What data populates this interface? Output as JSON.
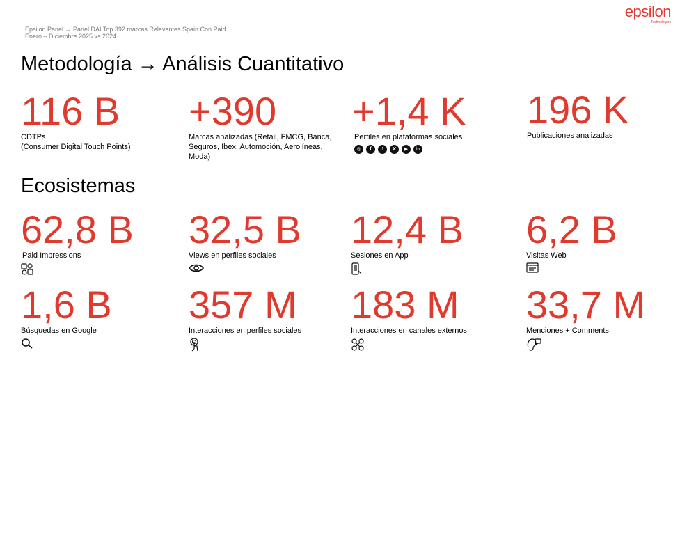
{
  "brand": {
    "logo_text": "epsilon",
    "logo_sub": "Technologies",
    "accent_color": "#e03a2f"
  },
  "header": {
    "kicker_line1": "Epsilon Panel → Panel DAI Top 392 marcas Relevantes Spain Con Paid",
    "kicker_line2": "Enero – Diciembre 2025 vs 2024"
  },
  "sections": {
    "metodologia_title": "Metodología → Análisis Cuantitativo",
    "ecosistemas_title": "Ecosistemas"
  },
  "metodologia": [
    {
      "value": "116 B",
      "label": "CDTPs",
      "label2": "(Consumer Digital Touch Points)"
    },
    {
      "value": "+390",
      "label": "Marcas analizadas (Retail, FMCG, Banca, Seguros, Ibex, Automoción, Aerolíneas, Moda)"
    },
    {
      "value": "+1,4 K",
      "label": "Perfiles en plataformas sociales",
      "icons": [
        "instagram-icon",
        "facebook-icon",
        "tiktok-icon",
        "x-icon",
        "youtube-icon",
        "linkedin-icon"
      ]
    },
    {
      "value": "196 K",
      "label": "Publicaciones analizadas"
    }
  ],
  "social_glyphs": [
    "◎",
    "f",
    "♪",
    "X",
    "▶",
    "in"
  ],
  "ecosistemas": [
    {
      "value": "62,8 B",
      "label": "Paid Impressions",
      "icon": "paid-impressions-icon"
    },
    {
      "value": "32,5 B",
      "label": "Views en perfiles sociales",
      "icon": "eye-icon"
    },
    {
      "value": "12,4 B",
      "label": "Sesiones en App",
      "icon": "mobile-app-icon"
    },
    {
      "value": "6,2 B",
      "label": "Visitas Web",
      "icon": "web-browser-icon"
    },
    {
      "value": "1,6 B",
      "label": "Búsquedas en Google",
      "icon": "search-icon"
    },
    {
      "value": "357 M",
      "label": "Interacciones en perfiles sociales",
      "icon": "touch-icon"
    },
    {
      "value": "183 M",
      "label": "Interacciones en canales externos",
      "icon": "external-channels-icon"
    },
    {
      "value": "33,7 M",
      "label": "Menciones + Comments",
      "icon": "mentions-icon"
    }
  ]
}
